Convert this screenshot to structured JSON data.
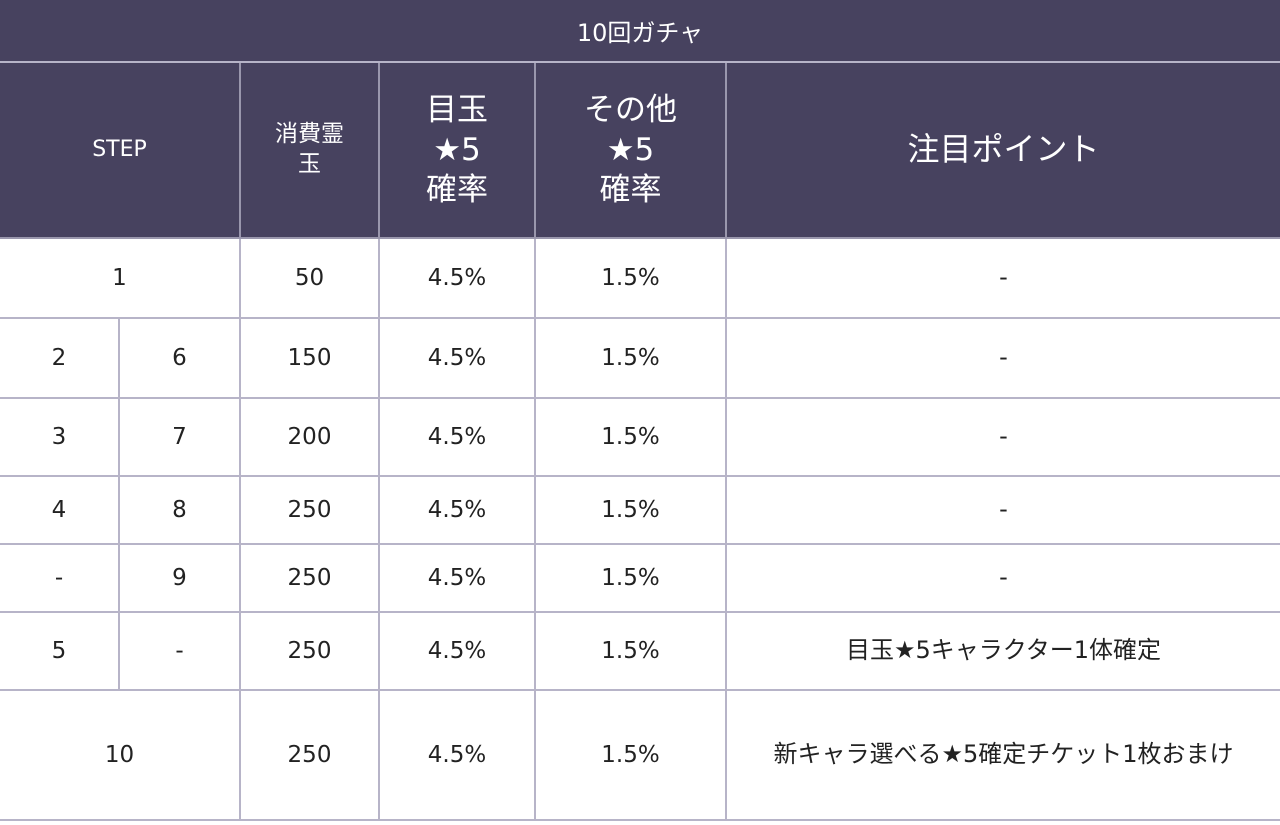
{
  "title": "10回ガチャ",
  "headers": {
    "step": "STEP",
    "cost": [
      "消費霊",
      "玉"
    ],
    "featured": [
      "目玉",
      "★5",
      "確率"
    ],
    "other": [
      "その他",
      "★5",
      "確率"
    ],
    "note": "注目ポイント"
  },
  "rows": [
    {
      "step": "1",
      "cost": "50",
      "featured": "4.5%",
      "other": "1.5%",
      "note": "-"
    },
    {
      "step_a": "2",
      "step_b": "6",
      "cost": "150",
      "featured": "4.5%",
      "other": "1.5%",
      "note": "-"
    },
    {
      "step_a": "3",
      "step_b": "7",
      "cost": "200",
      "featured": "4.5%",
      "other": "1.5%",
      "note": "-"
    },
    {
      "step_a": "4",
      "step_b": "8",
      "cost": "250",
      "featured": "4.5%",
      "other": "1.5%",
      "note": "-"
    },
    {
      "step_a": "-",
      "step_b": "9",
      "cost": "250",
      "featured": "4.5%",
      "other": "1.5%",
      "note": "-"
    },
    {
      "step_a": "5",
      "step_b": "-",
      "cost": "250",
      "featured": "4.5%",
      "other": "1.5%",
      "note": "目玉★5キャラクター1体確定"
    },
    {
      "step": "10",
      "cost": "250",
      "featured": "4.5%",
      "other": "1.5%",
      "note": "新キャラ選べる★5確定チケット1枚おまけ"
    }
  ],
  "colors": {
    "header_bg": "#47425f",
    "header_text": "#ffffff",
    "highlight": "#e41e1e",
    "border": "#b7b4c8"
  }
}
